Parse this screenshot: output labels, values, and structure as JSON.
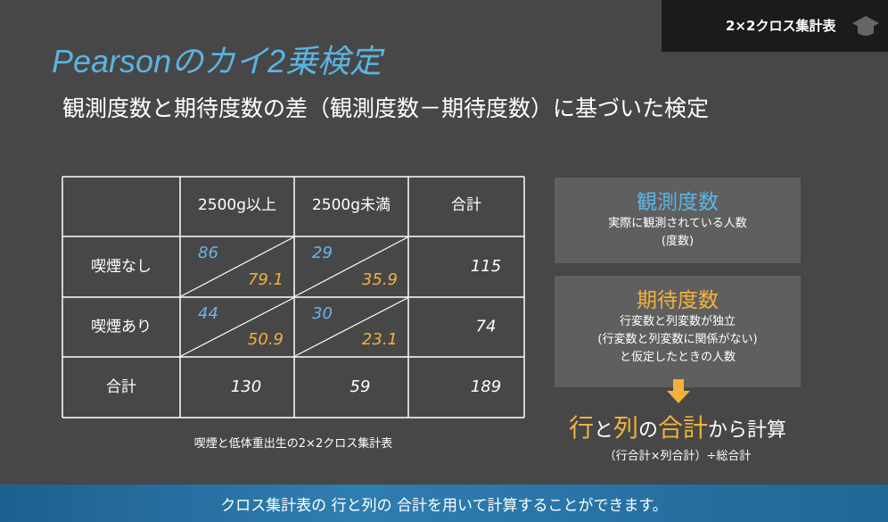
{
  "header_tag": "2×2クロス集計表",
  "title": "Pearsonのカイ2乗検定",
  "subtitle": "観測度数と期待度数の差（観測度数－期待度数）に基づいた検定",
  "table": {
    "columns": [
      "2500g以上",
      "2500g未満",
      "合計"
    ],
    "rows": [
      {
        "label": "喫煙なし",
        "cells": [
          {
            "observed": 86,
            "expected": 79.1
          },
          {
            "observed": 29,
            "expected": 35.9
          }
        ],
        "total": 115
      },
      {
        "label": "喫煙あり",
        "cells": [
          {
            "observed": 44,
            "expected": 50.9
          },
          {
            "observed": 30,
            "expected": 23.1
          }
        ],
        "total": 74
      }
    ],
    "totals": {
      "label": "合計",
      "values": [
        130,
        59,
        189
      ]
    },
    "caption": "喫煙と低体重出生の2×2クロス集計表"
  },
  "observed_box": {
    "title": "観測度数",
    "lines": [
      "実際に観測されている人数",
      "(度数)"
    ]
  },
  "expected_box": {
    "title": "期待度数",
    "lines": [
      "行変数と列変数が独立",
      "(行変数と列変数に関係がない)",
      "と仮定したときの人数"
    ]
  },
  "formula": {
    "parts": [
      "行",
      "と",
      "列",
      "の",
      "合計",
      "から計算"
    ],
    "note": "（行合計×列合計）÷総合計"
  },
  "footer": "クロス集計表の 行と列の 合計を用いて計算することができます。"
}
